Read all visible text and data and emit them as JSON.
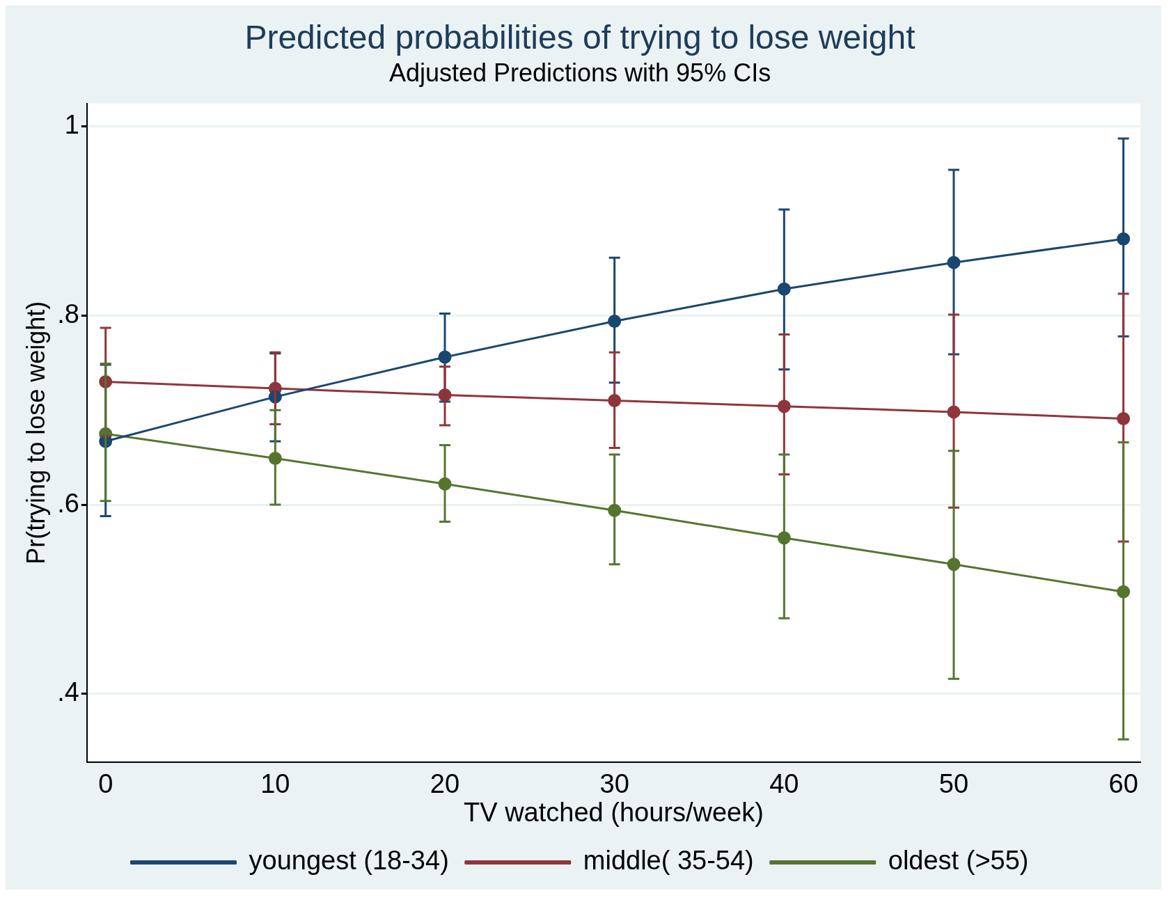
{
  "chart_data": {
    "type": "line",
    "title": "Predicted probabilities of trying to lose weight",
    "subtitle": "Adjusted Predictions with 95% CIs",
    "xlabel": "TV watched (hours/week)",
    "ylabel": "Pr(trying to lose weight)",
    "x": [
      0,
      10,
      20,
      30,
      40,
      50,
      60
    ],
    "series": [
      {
        "name": "youngest (18-34)",
        "color": "#1a476f",
        "values": [
          0.667,
          0.714,
          0.756,
          0.794,
          0.828,
          0.856,
          0.881
        ],
        "errors": [
          [
            0.588,
            0.748
          ],
          [
            0.667,
            0.76
          ],
          [
            0.709,
            0.802
          ],
          [
            0.729,
            0.861
          ],
          [
            0.743,
            0.912
          ],
          [
            0.759,
            0.954
          ],
          [
            0.778,
            0.987
          ]
        ]
      },
      {
        "name": "middle( 35-54)",
        "color": "#90353b",
        "values": [
          0.73,
          0.723,
          0.716,
          0.71,
          0.704,
          0.698,
          0.691
        ],
        "errors": [
          [
            0.672,
            0.787
          ],
          [
            0.685,
            0.761
          ],
          [
            0.684,
            0.746
          ],
          [
            0.66,
            0.761
          ],
          [
            0.632,
            0.78
          ],
          [
            0.597,
            0.801
          ],
          [
            0.561,
            0.823
          ]
        ]
      },
      {
        "name": "oldest (>55)",
        "color": "#55752f",
        "values": [
          0.675,
          0.649,
          0.622,
          0.594,
          0.565,
          0.537,
          0.508
        ],
        "errors": [
          [
            0.604,
            0.749
          ],
          [
            0.6,
            0.7
          ],
          [
            0.582,
            0.663
          ],
          [
            0.537,
            0.653
          ],
          [
            0.48,
            0.653
          ],
          [
            0.416,
            0.657
          ],
          [
            0.352,
            0.666
          ]
        ]
      }
    ],
    "xlim": [
      -1.1,
      61
    ],
    "xticks": [
      0,
      10,
      20,
      30,
      40,
      50,
      60
    ],
    "ylim": [
      0.328,
      1.024
    ],
    "yticks": [
      {
        "value": 0.4,
        "label": ".4"
      },
      {
        "value": 0.6,
        "label": ".6"
      },
      {
        "value": 0.8,
        "label": ".8"
      },
      {
        "value": 1,
        "label": "1"
      }
    ],
    "grid": "y",
    "legend": "bottom",
    "marker": "circle",
    "line_style": "solid"
  }
}
